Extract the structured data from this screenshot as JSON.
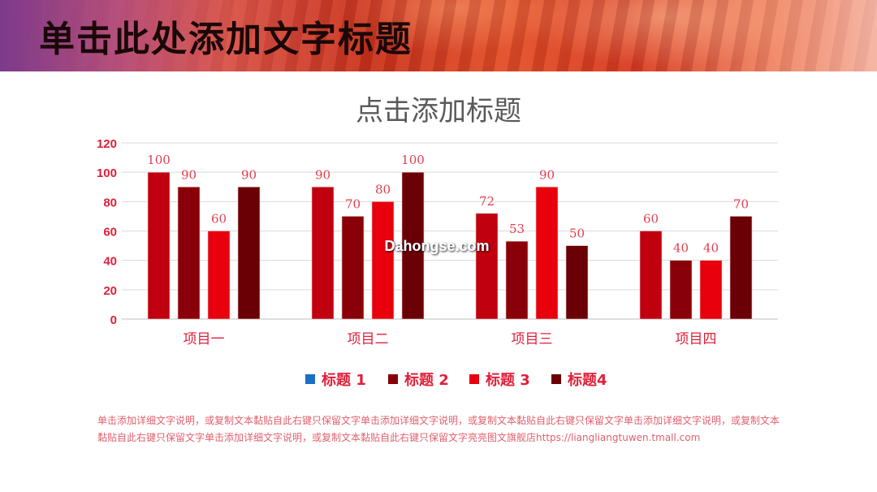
{
  "slide": {
    "header_title": "单击此处添加文字标题",
    "watermark": "Dahongse.com",
    "footnote": "单击添加详细文字说明，或复制文本黏贴自此右键只保留文字单击添加详细文字说明，或复制文本黏贴自此右键只保留文字单击添加详细文字说明，或复制文本黏贴自此右键只保留文字单击添加详细文字说明，或复制文本黏贴自此右键只保留文字亮亮图文旗舰店https://liangliangtuwen.tmall.com"
  },
  "colors": {
    "series": [
      "#c0000f",
      "#8a0008",
      "#e8000c",
      "#6a0006"
    ],
    "legend_swatch_1": "#1a6fc4",
    "axis_text": "#e0203a",
    "value_label": "#e04050",
    "grid": "#d9d9d9",
    "title": "#595959"
  },
  "chart_data": {
    "type": "bar",
    "title": "点击添加标题",
    "categories": [
      "项目一",
      "项目二",
      "项目三",
      "项目四"
    ],
    "series": [
      {
        "name": "标题 1",
        "values": [
          100,
          90,
          72,
          60
        ]
      },
      {
        "name": "标题 2",
        "values": [
          90,
          70,
          53,
          40
        ]
      },
      {
        "name": "标题 3",
        "values": [
          60,
          80,
          90,
          40
        ]
      },
      {
        "name": "标题4",
        "values": [
          90,
          100,
          50,
          70
        ]
      }
    ],
    "ylim": [
      0,
      120
    ],
    "yticks": [
      "0",
      "20",
      "40",
      "60",
      "80",
      "100",
      "120"
    ],
    "grid": true,
    "legend_position": "bottom"
  }
}
